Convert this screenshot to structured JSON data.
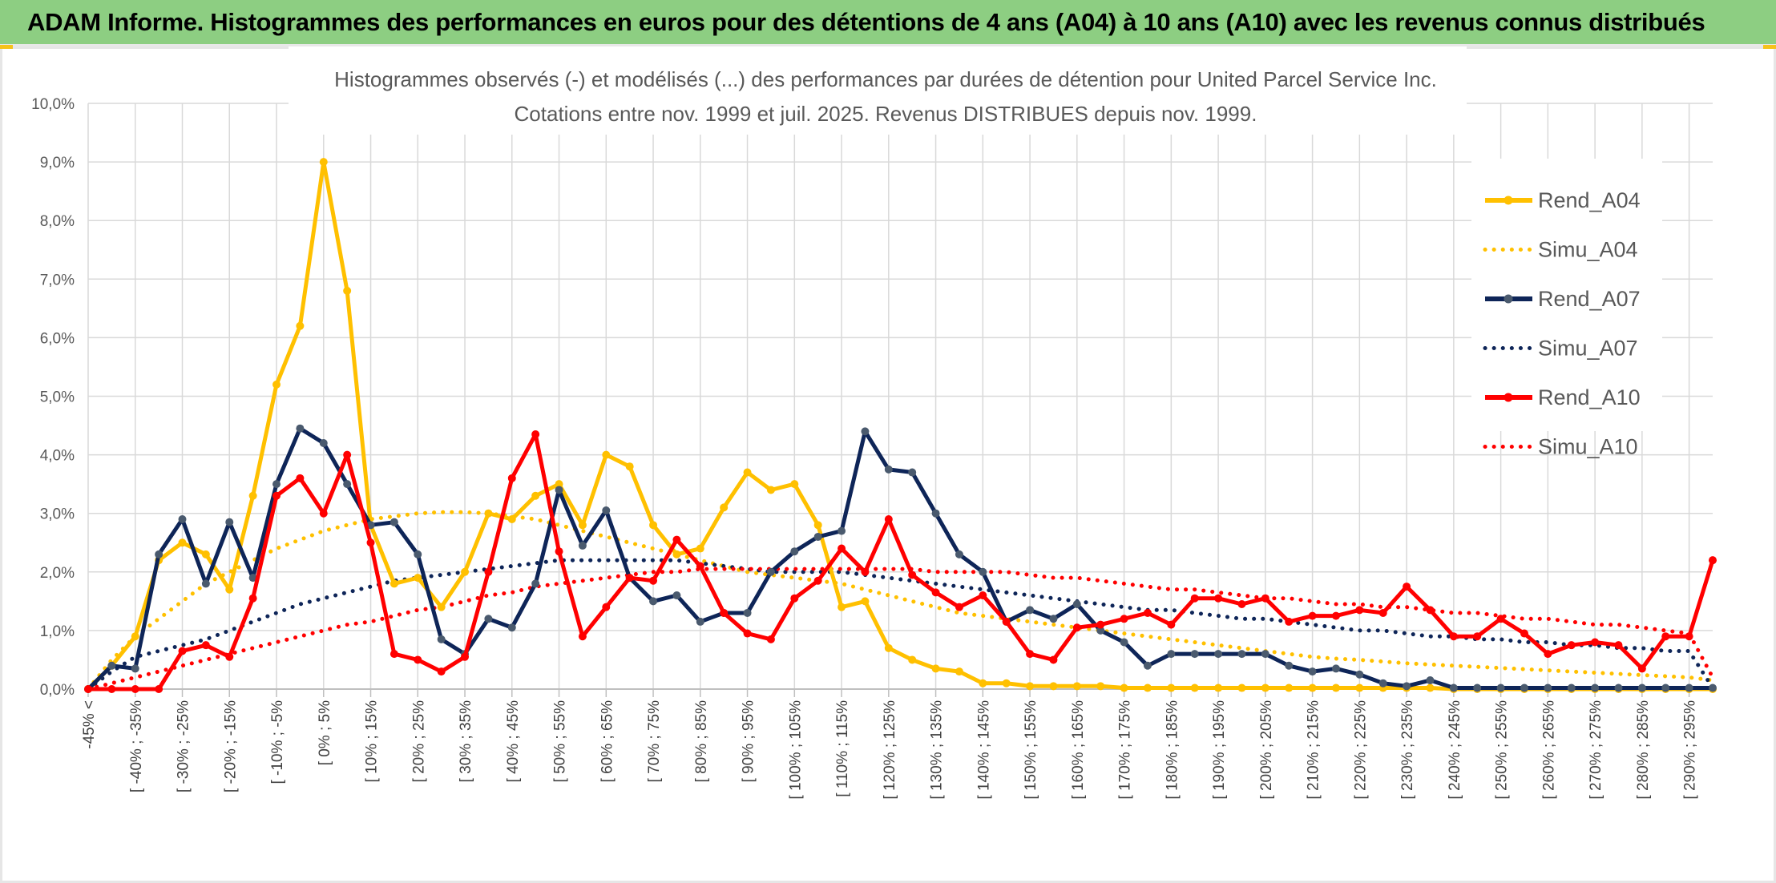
{
  "header": {
    "title": "ADAM Informe. Histogrammes des performances en euros pour des détentions de 4 ans (A04) à 10 ans (A10) avec les revenus connus distribués"
  },
  "chart_data": {
    "type": "line",
    "title_line1": "Histogrammes observés (-) et modélisés (...) des performances par durées de détention pour United Parcel Service Inc.",
    "title_line2": "Cotations entre nov. 1999 et juil. 2025. Revenus DISTRIBUES depuis nov. 1999.",
    "ylim": [
      0,
      10
    ],
    "yticks": [
      "0,0%",
      "1,0%",
      "2,0%",
      "3,0%",
      "4,0%",
      "5,0%",
      "6,0%",
      "7,0%",
      "8,0%",
      "9,0%",
      "10,0%"
    ],
    "grid": true,
    "legend_position": "right",
    "categories": [
      "-45% <",
      "[ -45% ; -40%",
      "[ -40% ; -35%",
      "[ -35% ; -30%",
      "[ -30% ; -25%",
      "[ -25% ; -20%",
      "[ -20% ; -15%",
      "[ -15% ; -10%",
      "[ -10% ; -5%",
      "[ -5% ; 0%",
      "[ 0% ; 5%",
      "[ 5% ; 10%",
      "[ 10% ; 15%",
      "[ 15% ; 20%",
      "[ 20% ; 25%",
      "[ 25% ; 30%",
      "[ 30% ; 35%",
      "[ 35% ; 40%",
      "[ 40% ; 45%",
      "[ 45% ; 50%",
      "[ 50% ; 55%",
      "[ 55% ; 60%",
      "[ 60% ; 65%",
      "[ 65% ; 70%",
      "[ 70% ; 75%",
      "[ 75% ; 80%",
      "[ 80% ; 85%",
      "[ 85% ; 90%",
      "[ 90% ; 95%",
      "[ 95% ; 100%",
      "[ 100% ; 105%",
      "[ 105% ; 110%",
      "[ 110% ; 115%",
      "[ 115% ; 120%",
      "[ 120% ; 125%",
      "[ 125% ; 130%",
      "[ 130% ; 135%",
      "[ 135% ; 140%",
      "[ 140% ; 145%",
      "[ 145% ; 150%",
      "[ 150% ; 155%",
      "[ 155% ; 160%",
      "[ 160% ; 165%",
      "[ 165% ; 170%",
      "[ 170% ; 175%",
      "[ 175% ; 180%",
      "[ 180% ; 185%",
      "[ 185% ; 190%",
      "[ 190% ; 195%",
      "[ 195% ; 200%",
      "[ 200% ; 205%",
      "[ 205% ; 210%",
      "[ 210% ; 215%",
      "[ 215% ; 220%",
      "[ 220% ; 225%",
      "[ 225% ; 230%",
      "[ 230% ; 235%",
      "[ 235% ; 240%",
      "[ 240% ; 245%",
      "[ 245% ; 250%",
      "[ 250% ; 255%",
      "[ 255% ; 260%",
      "[ 260% ; 265%",
      "[ 265% ; 270%",
      "[ 270% ; 275%",
      "[ 275% ; 280%",
      "[ 280% ; 285%",
      "[ 285% ; 290%",
      "[ 290% ; 295%",
      "[ 295% ; 300%"
    ],
    "visible_tick_labels": [
      "-45% <",
      "[ -40% ; -35%",
      "[ -30% ; -25%",
      "[ -20% ; -15%",
      "[ -10% ; -5%",
      "[ 0% ; 5%",
      "[ 10% ; 15%",
      "[ 20% ; 25%",
      "[ 30% ; 35%",
      "[ 40% ; 45%",
      "[ 50% ; 55%",
      "[ 60% ; 65%",
      "[ 70% ; 75%",
      "[ 80% ; 85%",
      "[ 90% ; 95%",
      "[ 100% ; 105%",
      "[ 110% ; 115%",
      "[ 120% ; 125%",
      "[ 130% ; 135%",
      "[ 140% ; 145%",
      "[ 150% ; 155%",
      "[ 160% ; 165%",
      "[ 170% ; 175%",
      "[ 180% ; 185%",
      "[ 190% ; 195%",
      "[ 200% ; 205%",
      "[ 210% ; 215%",
      "[ 220% ; 225%",
      "[ 230% ; 235%",
      "[ 240% ; 245%",
      "[ 250% ; 255%",
      "[ 260% ; 265%",
      "[ 270% ; 275%",
      "[ 280% ; 285%",
      "[ 290% ; 295%"
    ],
    "series": [
      {
        "name": "Rend_A04",
        "style": "solid",
        "color": "#ffc000",
        "values": [
          0,
          0.4,
          0.9,
          2.2,
          2.5,
          2.3,
          1.7,
          3.3,
          5.2,
          6.2,
          9.0,
          6.8,
          2.8,
          1.8,
          1.9,
          1.4,
          2.0,
          3.0,
          2.9,
          3.3,
          3.5,
          2.8,
          4.0,
          3.8,
          2.8,
          2.3,
          2.4,
          3.1,
          3.7,
          3.4,
          3.5,
          2.8,
          1.4,
          1.5,
          0.7,
          0.5,
          0.35,
          0.3,
          0.1,
          0.1,
          0.05,
          0.05,
          0.05,
          0.05,
          0.02,
          0.02,
          0.02,
          0.02,
          0.02,
          0.02,
          0.02,
          0.02,
          0.02,
          0.02,
          0.02,
          0.02,
          0.02,
          0.02,
          0,
          0,
          0,
          0,
          0,
          0,
          0,
          0,
          0,
          0,
          0,
          0
        ]
      },
      {
        "name": "Simu_A04",
        "style": "dotted",
        "color": "#ffc000",
        "values": [
          0,
          0.5,
          0.9,
          1.2,
          1.5,
          1.8,
          2.0,
          2.2,
          2.4,
          2.55,
          2.7,
          2.8,
          2.9,
          2.95,
          3.0,
          3.02,
          3.02,
          3.0,
          2.95,
          2.9,
          2.8,
          2.7,
          2.6,
          2.5,
          2.4,
          2.3,
          2.2,
          2.1,
          2.0,
          1.95,
          1.9,
          1.85,
          1.8,
          1.7,
          1.6,
          1.5,
          1.4,
          1.3,
          1.25,
          1.2,
          1.15,
          1.1,
          1.05,
          1.0,
          0.95,
          0.9,
          0.85,
          0.8,
          0.75,
          0.7,
          0.65,
          0.6,
          0.55,
          0.52,
          0.5,
          0.47,
          0.44,
          0.42,
          0.4,
          0.38,
          0.36,
          0.34,
          0.32,
          0.3,
          0.28,
          0.26,
          0.24,
          0.22,
          0.2,
          0.15
        ]
      },
      {
        "name": "Rend_A07",
        "style": "solid",
        "color": "#0e2558",
        "values": [
          0,
          0.4,
          0.35,
          2.3,
          2.9,
          1.8,
          2.85,
          1.9,
          3.5,
          4.45,
          4.2,
          3.5,
          2.8,
          2.85,
          2.3,
          0.85,
          0.6,
          1.2,
          1.05,
          1.8,
          3.4,
          2.45,
          3.05,
          1.9,
          1.5,
          1.6,
          1.15,
          1.3,
          1.3,
          2.0,
          2.35,
          2.6,
          2.7,
          4.4,
          3.75,
          3.7,
          3.0,
          2.3,
          2.0,
          1.15,
          1.35,
          1.2,
          1.45,
          1.0,
          0.8,
          0.4,
          0.6,
          0.6,
          0.6,
          0.6,
          0.6,
          0.4,
          0.3,
          0.35,
          0.25,
          0.1,
          0.05,
          0.15,
          0.02,
          0.02,
          0.02,
          0.02,
          0.02,
          0.02,
          0.02,
          0.02,
          0.02,
          0.02,
          0.02,
          0.02
        ]
      },
      {
        "name": "Simu_A07",
        "style": "dotted",
        "color": "#0e2558",
        "values": [
          0,
          0.3,
          0.55,
          0.65,
          0.75,
          0.85,
          1.0,
          1.15,
          1.3,
          1.45,
          1.55,
          1.65,
          1.75,
          1.85,
          1.9,
          1.95,
          2.0,
          2.05,
          2.1,
          2.15,
          2.2,
          2.2,
          2.2,
          2.2,
          2.2,
          2.2,
          2.15,
          2.1,
          2.05,
          2.0,
          2.0,
          2.0,
          2.0,
          1.95,
          1.9,
          1.85,
          1.8,
          1.75,
          1.7,
          1.65,
          1.6,
          1.55,
          1.5,
          1.45,
          1.4,
          1.35,
          1.35,
          1.3,
          1.25,
          1.2,
          1.2,
          1.15,
          1.1,
          1.05,
          1.0,
          1.0,
          0.95,
          0.9,
          0.9,
          0.85,
          0.85,
          0.8,
          0.8,
          0.75,
          0.75,
          0.7,
          0.7,
          0.65,
          0.65,
          0.02
        ]
      },
      {
        "name": "Rend_A10",
        "style": "solid",
        "color": "#ff0000",
        "values": [
          0,
          0,
          0,
          0,
          0.65,
          0.75,
          0.55,
          1.55,
          3.3,
          3.6,
          3.0,
          4.0,
          2.5,
          0.6,
          0.5,
          0.3,
          0.55,
          2.0,
          3.6,
          4.35,
          2.35,
          0.9,
          1.4,
          1.9,
          1.85,
          2.55,
          2.1,
          1.3,
          0.95,
          0.85,
          1.55,
          1.85,
          2.4,
          2.0,
          2.9,
          1.95,
          1.65,
          1.4,
          1.6,
          1.15,
          0.6,
          0.5,
          1.05,
          1.1,
          1.2,
          1.3,
          1.1,
          1.55,
          1.55,
          1.45,
          1.55,
          1.15,
          1.25,
          1.25,
          1.35,
          1.3,
          1.75,
          1.35,
          0.9,
          0.9,
          1.2,
          0.95,
          0.6,
          0.75,
          0.8,
          0.75,
          0.35,
          0.9,
          0.9,
          2.2
        ]
      },
      {
        "name": "Simu_A10",
        "style": "dotted",
        "color": "#ff0000",
        "values": [
          0,
          0.1,
          0.2,
          0.3,
          0.4,
          0.5,
          0.6,
          0.7,
          0.8,
          0.9,
          1.0,
          1.1,
          1.15,
          1.25,
          1.35,
          1.4,
          1.5,
          1.6,
          1.65,
          1.75,
          1.8,
          1.85,
          1.9,
          1.95,
          2.0,
          2.0,
          2.05,
          2.05,
          2.05,
          2.05,
          2.05,
          2.05,
          2.05,
          2.05,
          2.05,
          2.05,
          2.0,
          2.0,
          2.0,
          2.0,
          1.95,
          1.9,
          1.9,
          1.85,
          1.8,
          1.75,
          1.7,
          1.7,
          1.65,
          1.6,
          1.55,
          1.55,
          1.5,
          1.45,
          1.45,
          1.4,
          1.4,
          1.35,
          1.3,
          1.3,
          1.25,
          1.2,
          1.2,
          1.15,
          1.1,
          1.1,
          1.05,
          1.0,
          0.95,
          0.2
        ]
      }
    ]
  }
}
